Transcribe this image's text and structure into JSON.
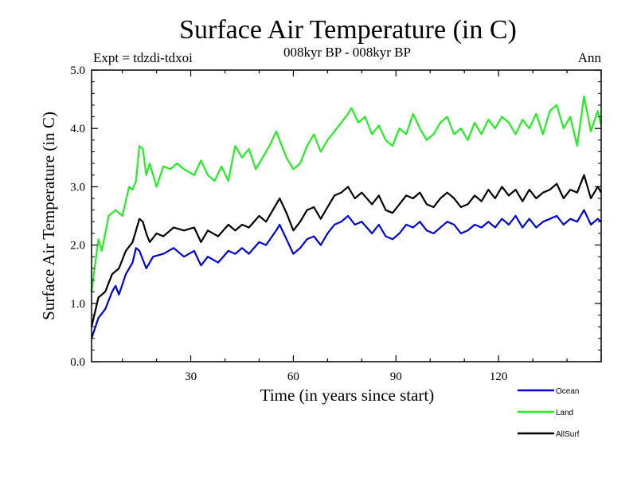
{
  "chart_data": {
    "type": "line",
    "title": "Surface Air Temperature (in C)",
    "subtitle": "008kyr BP - 008kyr BP",
    "left_label": "Expt = tdzdi-tdxoi",
    "right_label": "Ann",
    "xlabel": "Time (in years since start)",
    "ylabel": "Surface Air Temperature (in C)",
    "xlim": [
      1,
      150
    ],
    "ylim": [
      0,
      5
    ],
    "xticks": [
      30,
      60,
      90,
      120
    ],
    "xtick_labels": [
      "30",
      "60",
      "90",
      "120"
    ],
    "yticks": [
      0,
      1,
      2,
      3,
      4,
      5
    ],
    "ytick_labels": [
      "0.0",
      "1.0",
      "2.0",
      "3.0",
      "4.0",
      "5.0"
    ],
    "legend_position": "bottom-right",
    "series": [
      {
        "name": "Ocean",
        "color": "#0000dd",
        "points": [
          [
            1,
            0.4
          ],
          [
            3,
            0.75
          ],
          [
            5,
            0.9
          ],
          [
            7,
            1.2
          ],
          [
            8,
            1.3
          ],
          [
            9,
            1.15
          ],
          [
            11,
            1.5
          ],
          [
            13,
            1.7
          ],
          [
            14,
            1.95
          ],
          [
            15,
            1.9
          ],
          [
            16,
            1.75
          ],
          [
            17,
            1.6
          ],
          [
            19,
            1.8
          ],
          [
            22,
            1.85
          ],
          [
            25,
            1.95
          ],
          [
            28,
            1.8
          ],
          [
            31,
            1.9
          ],
          [
            33,
            1.65
          ],
          [
            35,
            1.8
          ],
          [
            38,
            1.7
          ],
          [
            41,
            1.9
          ],
          [
            43,
            1.85
          ],
          [
            45,
            1.95
          ],
          [
            47,
            1.85
          ],
          [
            50,
            2.05
          ],
          [
            52,
            2.0
          ],
          [
            55,
            2.25
          ],
          [
            56,
            2.35
          ],
          [
            58,
            2.1
          ],
          [
            60,
            1.85
          ],
          [
            62,
            1.95
          ],
          [
            64,
            2.1
          ],
          [
            66,
            2.15
          ],
          [
            68,
            2.0
          ],
          [
            70,
            2.2
          ],
          [
            72,
            2.35
          ],
          [
            74,
            2.4
          ],
          [
            76,
            2.5
          ],
          [
            78,
            2.35
          ],
          [
            80,
            2.4
          ],
          [
            83,
            2.2
          ],
          [
            85,
            2.35
          ],
          [
            87,
            2.15
          ],
          [
            89,
            2.1
          ],
          [
            91,
            2.2
          ],
          [
            93,
            2.35
          ],
          [
            95,
            2.3
          ],
          [
            97,
            2.4
          ],
          [
            99,
            2.25
          ],
          [
            101,
            2.2
          ],
          [
            103,
            2.3
          ],
          [
            105,
            2.4
          ],
          [
            107,
            2.35
          ],
          [
            109,
            2.2
          ],
          [
            111,
            2.25
          ],
          [
            113,
            2.35
          ],
          [
            115,
            2.3
          ],
          [
            117,
            2.4
          ],
          [
            119,
            2.3
          ],
          [
            121,
            2.45
          ],
          [
            123,
            2.35
          ],
          [
            125,
            2.5
          ],
          [
            127,
            2.3
          ],
          [
            129,
            2.45
          ],
          [
            131,
            2.3
          ],
          [
            133,
            2.4
          ],
          [
            135,
            2.45
          ],
          [
            137,
            2.5
          ],
          [
            139,
            2.35
          ],
          [
            141,
            2.45
          ],
          [
            143,
            2.4
          ],
          [
            145,
            2.6
          ],
          [
            147,
            2.35
          ],
          [
            149,
            2.45
          ],
          [
            150,
            2.4
          ]
        ]
      },
      {
        "name": "Land",
        "color": "#22ee22",
        "points": [
          [
            1,
            1.2
          ],
          [
            3,
            2.1
          ],
          [
            4,
            1.9
          ],
          [
            6,
            2.5
          ],
          [
            8,
            2.6
          ],
          [
            10,
            2.5
          ],
          [
            12,
            3.0
          ],
          [
            13,
            2.95
          ],
          [
            14,
            3.1
          ],
          [
            15,
            3.7
          ],
          [
            16,
            3.65
          ],
          [
            17,
            3.2
          ],
          [
            18,
            3.4
          ],
          [
            20,
            3.0
          ],
          [
            22,
            3.35
          ],
          [
            24,
            3.3
          ],
          [
            26,
            3.4
          ],
          [
            28,
            3.3
          ],
          [
            31,
            3.2
          ],
          [
            33,
            3.45
          ],
          [
            35,
            3.2
          ],
          [
            37,
            3.1
          ],
          [
            39,
            3.35
          ],
          [
            41,
            3.1
          ],
          [
            43,
            3.7
          ],
          [
            45,
            3.5
          ],
          [
            47,
            3.65
          ],
          [
            49,
            3.3
          ],
          [
            51,
            3.5
          ],
          [
            53,
            3.7
          ],
          [
            55,
            3.95
          ],
          [
            56,
            3.8
          ],
          [
            58,
            3.5
          ],
          [
            60,
            3.3
          ],
          [
            62,
            3.4
          ],
          [
            64,
            3.7
          ],
          [
            66,
            3.9
          ],
          [
            68,
            3.6
          ],
          [
            70,
            3.8
          ],
          [
            72,
            3.95
          ],
          [
            74,
            4.1
          ],
          [
            76,
            4.25
          ],
          [
            77,
            4.35
          ],
          [
            79,
            4.1
          ],
          [
            81,
            4.2
          ],
          [
            83,
            3.9
          ],
          [
            85,
            4.05
          ],
          [
            87,
            3.8
          ],
          [
            89,
            3.7
          ],
          [
            91,
            4.0
          ],
          [
            93,
            3.9
          ],
          [
            95,
            4.25
          ],
          [
            97,
            4.0
          ],
          [
            99,
            3.8
          ],
          [
            101,
            3.9
          ],
          [
            103,
            4.1
          ],
          [
            105,
            4.2
          ],
          [
            107,
            3.9
          ],
          [
            109,
            4.0
          ],
          [
            111,
            3.8
          ],
          [
            113,
            4.1
          ],
          [
            115,
            3.9
          ],
          [
            117,
            4.15
          ],
          [
            119,
            4.0
          ],
          [
            121,
            4.2
          ],
          [
            123,
            4.1
          ],
          [
            125,
            3.9
          ],
          [
            127,
            4.15
          ],
          [
            129,
            4.0
          ],
          [
            131,
            4.25
          ],
          [
            133,
            3.9
          ],
          [
            135,
            4.3
          ],
          [
            137,
            4.4
          ],
          [
            139,
            4.0
          ],
          [
            141,
            4.2
          ],
          [
            143,
            3.7
          ],
          [
            145,
            4.55
          ],
          [
            147,
            3.95
          ],
          [
            149,
            4.3
          ],
          [
            150,
            4.05
          ]
        ]
      },
      {
        "name": "AllSurf",
        "color": "#000000",
        "points": [
          [
            1,
            0.6
          ],
          [
            3,
            1.1
          ],
          [
            5,
            1.2
          ],
          [
            7,
            1.5
          ],
          [
            9,
            1.6
          ],
          [
            11,
            1.9
          ],
          [
            13,
            2.05
          ],
          [
            14,
            2.25
          ],
          [
            15,
            2.45
          ],
          [
            16,
            2.4
          ],
          [
            17,
            2.2
          ],
          [
            18,
            2.05
          ],
          [
            20,
            2.2
          ],
          [
            22,
            2.15
          ],
          [
            25,
            2.3
          ],
          [
            28,
            2.25
          ],
          [
            31,
            2.3
          ],
          [
            33,
            2.05
          ],
          [
            35,
            2.25
          ],
          [
            38,
            2.15
          ],
          [
            41,
            2.35
          ],
          [
            43,
            2.25
          ],
          [
            45,
            2.35
          ],
          [
            47,
            2.3
          ],
          [
            50,
            2.5
          ],
          [
            52,
            2.4
          ],
          [
            55,
            2.7
          ],
          [
            56,
            2.8
          ],
          [
            58,
            2.55
          ],
          [
            60,
            2.25
          ],
          [
            62,
            2.4
          ],
          [
            64,
            2.6
          ],
          [
            66,
            2.65
          ],
          [
            68,
            2.45
          ],
          [
            70,
            2.65
          ],
          [
            72,
            2.85
          ],
          [
            74,
            2.9
          ],
          [
            76,
            3.0
          ],
          [
            78,
            2.8
          ],
          [
            80,
            2.9
          ],
          [
            83,
            2.7
          ],
          [
            85,
            2.85
          ],
          [
            87,
            2.6
          ],
          [
            89,
            2.55
          ],
          [
            91,
            2.7
          ],
          [
            93,
            2.85
          ],
          [
            95,
            2.8
          ],
          [
            97,
            2.9
          ],
          [
            99,
            2.7
          ],
          [
            101,
            2.65
          ],
          [
            103,
            2.8
          ],
          [
            105,
            2.9
          ],
          [
            107,
            2.8
          ],
          [
            109,
            2.65
          ],
          [
            111,
            2.7
          ],
          [
            113,
            2.85
          ],
          [
            115,
            2.75
          ],
          [
            117,
            2.95
          ],
          [
            119,
            2.8
          ],
          [
            121,
            3.0
          ],
          [
            123,
            2.85
          ],
          [
            125,
            2.95
          ],
          [
            127,
            2.75
          ],
          [
            129,
            2.95
          ],
          [
            131,
            2.8
          ],
          [
            133,
            2.9
          ],
          [
            135,
            2.95
          ],
          [
            137,
            3.05
          ],
          [
            139,
            2.8
          ],
          [
            141,
            2.95
          ],
          [
            143,
            2.9
          ],
          [
            145,
            3.2
          ],
          [
            147,
            2.8
          ],
          [
            149,
            3.0
          ],
          [
            150,
            2.9
          ]
        ]
      }
    ]
  }
}
